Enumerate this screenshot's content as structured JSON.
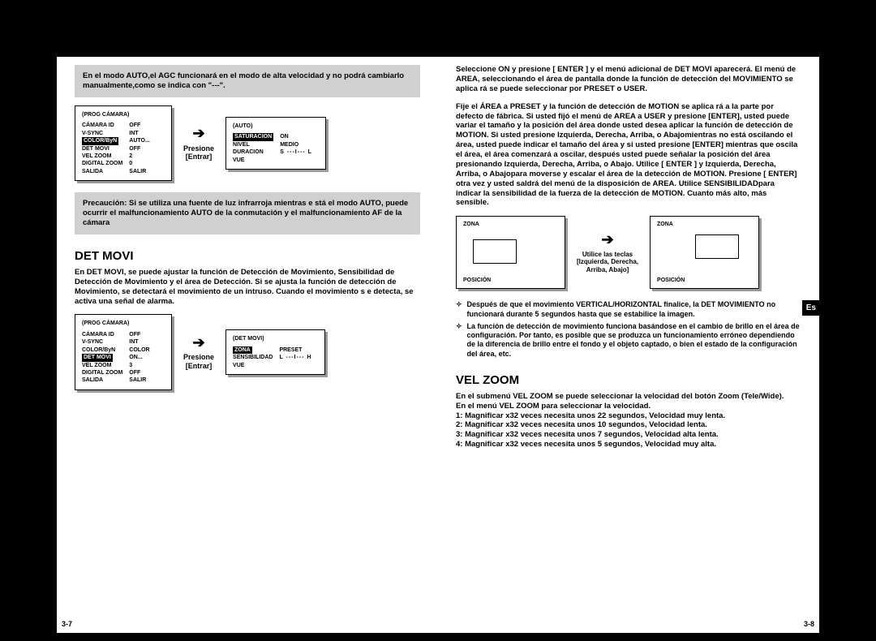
{
  "tab": "Es",
  "pageLeftNum": "3-7",
  "pageRightNum": "3-8",
  "left": {
    "infobox1": "En el modo AUTO,el AGC funcionará en el modo de alta velocidad y no podrá cambiarlo manualmente,como se indica con \"---\".",
    "menu1": {
      "title": "(PROG CÁMARA)",
      "rows": [
        [
          "CÁMARA ID",
          "OFF"
        ],
        [
          "V-SYNC",
          "INT"
        ],
        [
          "COLOR/ByN",
          "AUTO...",
          true
        ],
        [
          "DET MOVI",
          "OFF"
        ],
        [
          "VEL ZOOM",
          "2"
        ],
        [
          "DIGITAL ZOOM",
          "0"
        ],
        [
          "",
          ""
        ],
        [
          "SALIDA",
          "SALIR"
        ]
      ]
    },
    "arrow1a": "Presione",
    "arrow1b": "[Entrar]",
    "menu2": {
      "title": "(AUTO)",
      "rows": [
        [
          "SATURACION",
          "ON",
          true
        ],
        [
          "NIVEL",
          "MEDIO"
        ],
        [
          "DURACION",
          "S ---I--- L",
          false,
          true
        ],
        [
          "VUE",
          ""
        ]
      ]
    },
    "infobox2": "Precaución: Si se utiliza una fuente de luz infrarroja mientras e stá el modo AUTO, puede ocurrir el malfuncionamiento AUTO de la conmutación y el malfuncionamiento AF de la cámara",
    "detMoviTitle": "DET MOVI",
    "detMoviBody": "En DET MOVI, se puede ajustar la función de Detección de Movimiento, Sensibilidad de Detección de Movimiento y el área de Detección. Si se ajusta la función de detección de Movimiento, se detectará el movimiento de un intruso. Cuando el movimiento s e detecta, se activa una señal de alarma.",
    "menu3": {
      "title": "(PROG CÁMARA)",
      "rows": [
        [
          "CÁMARA ID",
          "OFF"
        ],
        [
          "V-SYNC",
          "INT"
        ],
        [
          "COLOR/ByN",
          "COLOR"
        ],
        [
          "DET MOVI",
          "ON...",
          true
        ],
        [
          "VEL ZOOM",
          "3"
        ],
        [
          "DIGITAL ZOOM",
          "OFF"
        ],
        [
          "",
          ""
        ],
        [
          "SALIDA",
          "SALIR"
        ]
      ]
    },
    "arrow2a": "Presione",
    "arrow2b": "[Entrar]",
    "menu4": {
      "title": "(DET MOVI)",
      "rows": [
        [
          "ZONA",
          "PRESET",
          true
        ],
        [
          "SENSIBILIDAD",
          "L ---I--- H",
          false,
          true
        ],
        [
          "VUE",
          ""
        ]
      ]
    }
  },
  "right": {
    "body1": "Seleccione ON y presione [ ENTER ] y el menú adicional de DET MOVI aparecerá. El menú de AREA, seleccionando el área de pantalla donde la función de detección del MOVIMIENTO se aplica rá se puede seleccionar por PRESET o USER.",
    "body2": "Fije el ÁREA a PRESET y la función de detección de MOTION se aplica rá a la parte por defecto de fábrica. Si usted fijó el menú de AREA a USER y presione [ENTER], usted puede variar el tamaño y la posición del área donde usted desea aplicar la función de detección de MOTION. Si usted presione Izquierda, Derecha, Arriba, o Abajomientras no está oscilando el área, usted puede indicar el tamaño del área y si usted presione [ENTER] mientras que oscila el área, el área comenzará a oscilar, después usted puede señalar la posición del área presionando Izquierda, Derecha, Arriba, o Abajo. Utilice [ ENTER ] y Izquierda, Derecha, Arriba, o Abajopara moverse y escalar el área de la detección de MOTION. Presione [ ENTER] otra vez y usted saldrá del menú de la disposición de AREA. Utilice SENSIBILIDADpara indicar la sensibilidad de la fuerza de la detección de MOTION. Cuanto más alto, más sensible.",
    "zona1": {
      "label": "ZONA",
      "pos": "POSICIÓN"
    },
    "arrow3a": "Utilice las teclas",
    "arrow3b": "[Izquierda, Derecha,",
    "arrow3c": "Arriba, Abajo]",
    "zona2": {
      "label": "ZONA",
      "pos": "POSICIÓN"
    },
    "note1": "Después de que el movimiento VERTICAL/HORIZONTAL finalice, la DET MOVIMIENTO no funcionará durante 5 segundos hasta que se estabilice la imagen.",
    "note2": "La función de detección de movimiento funciona basándose en el cambio de brillo en el área de configuración. Por tanto, es posible que se produzca un funcionamiento erróneo dependiendo de la diferencia de brillo entre el fondo y el objeto captado, o bien el estado de la configuración del área, etc.",
    "velZoomTitle": "VEL ZOOM",
    "velZoomBody": "En el submenú VEL ZOOM se puede seleccionar la velocidad del botón Zoom (Tele/Wide).\nEn el menú VEL ZOOM para seleccionar la velocidad.\n1: Magnificar x32 veces necesita unos 22 segundos, Velocidad muy lenta.\n2: Magnificar x32 veces necesita unos 10 segundos, Velocidad lenta.\n3: Magnificar x32 veces necesita unos 7 segundos, Velocidad alta lenta.\n4: Magnificar x32 veces necesita unos 5 segundos, Velocidad muy alta."
  }
}
